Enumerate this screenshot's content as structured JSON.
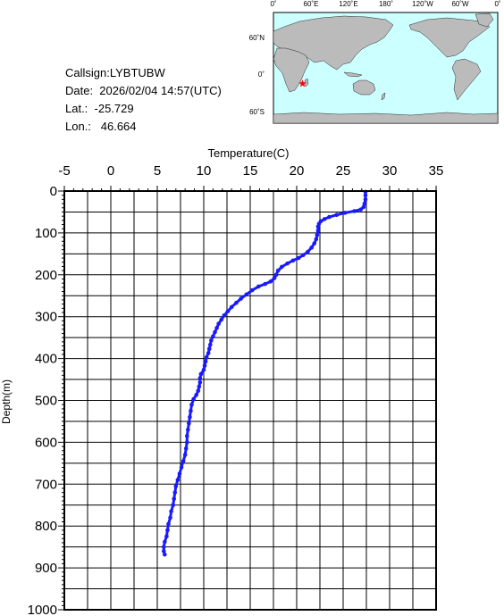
{
  "station": {
    "callsign": "Callsign:LYBTUBW",
    "date": "Date:  2026/02/04 14:57(UTC)",
    "lat": "Lat.:  -25.729",
    "lon": "Lon.:   46.664"
  },
  "map": {
    "top_labels": [
      "0˚",
      "60˚E",
      "120˚E",
      "180˚",
      "120˚W",
      "60˚W",
      "0˚"
    ],
    "lat_labels": [
      "60˚N",
      "0˚",
      "60˚S"
    ],
    "ocean_color": "#ccffff",
    "land_color": "#bbbbbb",
    "marker": {
      "lon": 46.664,
      "lat": -25.729,
      "color": "#ff0000",
      "symbol": "star"
    }
  },
  "chart_data": {
    "type": "line",
    "xlabel": "Temperature(C)",
    "ylabel": "Depth(m)",
    "xlim": [
      -5,
      35
    ],
    "ylim": [
      0,
      1000
    ],
    "y_inverted": true,
    "x_axis_position": "top",
    "x_ticks": [
      "-5",
      "0",
      "5",
      "10",
      "15",
      "20",
      "25",
      "30",
      "35"
    ],
    "y_ticks": [
      "0",
      "100",
      "200",
      "300",
      "400",
      "500",
      "600",
      "700",
      "800",
      "900",
      "1000"
    ],
    "grid": true,
    "series_color": "#1a1aff",
    "series": [
      {
        "points": [
          [
            27.4,
            2
          ],
          [
            27.4,
            10
          ],
          [
            27.4,
            20
          ],
          [
            27.3,
            30
          ],
          [
            27.2,
            38
          ],
          [
            26.9,
            44
          ],
          [
            26.2,
            48
          ],
          [
            25.2,
            52
          ],
          [
            24.3,
            57
          ],
          [
            23.5,
            62
          ],
          [
            23.0,
            67
          ],
          [
            22.6,
            72
          ],
          [
            22.4,
            78
          ],
          [
            22.3,
            85
          ],
          [
            22.3,
            95
          ],
          [
            22.2,
            105
          ],
          [
            22.1,
            115
          ],
          [
            21.9,
            125
          ],
          [
            21.6,
            135
          ],
          [
            21.2,
            145
          ],
          [
            20.7,
            153
          ],
          [
            20.2,
            160
          ],
          [
            19.6,
            166
          ],
          [
            19.0,
            173
          ],
          [
            18.4,
            181
          ],
          [
            18.0,
            190
          ],
          [
            17.8,
            200
          ],
          [
            17.6,
            208
          ],
          [
            17.2,
            216
          ],
          [
            16.6,
            222
          ],
          [
            15.9,
            228
          ],
          [
            15.2,
            237
          ],
          [
            14.6,
            247
          ],
          [
            14.0,
            257
          ],
          [
            13.5,
            267
          ],
          [
            13.0,
            277
          ],
          [
            12.6,
            287
          ],
          [
            12.2,
            297
          ],
          [
            11.9,
            307
          ],
          [
            11.6,
            317
          ],
          [
            11.4,
            327
          ],
          [
            11.2,
            337
          ],
          [
            11.0,
            347
          ],
          [
            10.8,
            357
          ],
          [
            10.7,
            367
          ],
          [
            10.6,
            377
          ],
          [
            10.5,
            387
          ],
          [
            10.3,
            397
          ],
          [
            10.2,
            407
          ],
          [
            10.1,
            417
          ],
          [
            10.0,
            427
          ],
          [
            9.7,
            437
          ],
          [
            9.6,
            447
          ],
          [
            9.6,
            457
          ],
          [
            9.5,
            467
          ],
          [
            9.4,
            477
          ],
          [
            9.2,
            487
          ],
          [
            8.9,
            497
          ],
          [
            8.7,
            510
          ],
          [
            8.6,
            525
          ],
          [
            8.5,
            540
          ],
          [
            8.4,
            555
          ],
          [
            8.3,
            570
          ],
          [
            8.2,
            585
          ],
          [
            8.2,
            600
          ],
          [
            8.1,
            615
          ],
          [
            8.0,
            630
          ],
          [
            7.8,
            645
          ],
          [
            7.6,
            660
          ],
          [
            7.4,
            675
          ],
          [
            7.2,
            690
          ],
          [
            7.0,
            705
          ],
          [
            6.9,
            720
          ],
          [
            6.8,
            735
          ],
          [
            6.7,
            750
          ],
          [
            6.5,
            765
          ],
          [
            6.4,
            780
          ],
          [
            6.2,
            795
          ],
          [
            6.1,
            810
          ],
          [
            6.0,
            825
          ],
          [
            5.8,
            838
          ],
          [
            5.7,
            850
          ],
          [
            5.7,
            860
          ],
          [
            5.8,
            868
          ]
        ]
      }
    ]
  }
}
